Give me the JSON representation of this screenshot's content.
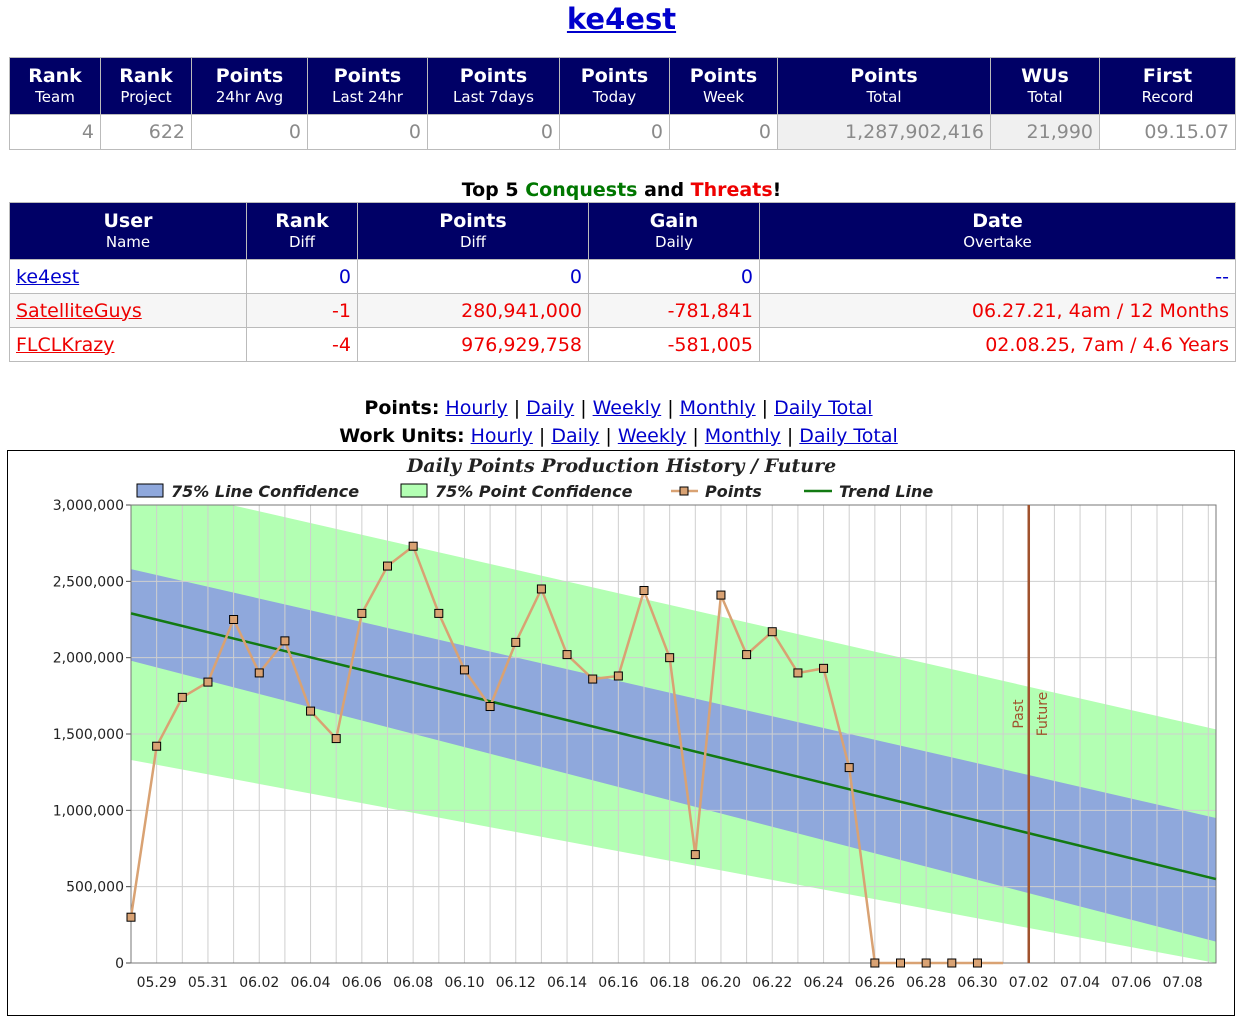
{
  "title": "ke4est",
  "stats": {
    "headers": [
      {
        "top": "Rank",
        "sub": "Team"
      },
      {
        "top": "Rank",
        "sub": "Project"
      },
      {
        "top": "Points",
        "sub": "24hr Avg"
      },
      {
        "top": "Points",
        "sub": "Last 24hr"
      },
      {
        "top": "Points",
        "sub": "Last 7days"
      },
      {
        "top": "Points",
        "sub": "Today"
      },
      {
        "top": "Points",
        "sub": "Week"
      },
      {
        "top": "Points",
        "sub": "Total"
      },
      {
        "top": "WUs",
        "sub": "Total"
      },
      {
        "top": "First",
        "sub": "Record"
      }
    ],
    "values": [
      "4",
      "622",
      "0",
      "0",
      "0",
      "0",
      "0",
      "1,287,902,416",
      "21,990",
      "09.15.07"
    ]
  },
  "top5": {
    "heading_pre": "Top 5 ",
    "heading_conquests": "Conquests",
    "heading_mid": " and ",
    "heading_threats": "Threats",
    "heading_post": "!",
    "headers": [
      {
        "top": "User",
        "sub": "Name"
      },
      {
        "top": "Rank",
        "sub": "Diff"
      },
      {
        "top": "Points",
        "sub": "Diff"
      },
      {
        "top": "Gain",
        "sub": "Daily"
      },
      {
        "top": "Date",
        "sub": "Overtake"
      }
    ],
    "rows": [
      {
        "user": "ke4est",
        "rank_diff": "0",
        "points_diff": "0",
        "gain": "0",
        "date": "--"
      },
      {
        "user": "SatelliteGuys",
        "rank_diff": "-1",
        "points_diff": "280,941,000",
        "gain": "-781,841",
        "date": "06.27.21, 4am / 12 Months"
      },
      {
        "user": "FLCLKrazy",
        "rank_diff": "-4",
        "points_diff": "976,929,758",
        "gain": "-581,005",
        "date": "02.08.25, 7am / 4.6 Years"
      }
    ]
  },
  "nav": {
    "points_label": "Points:",
    "wu_label": "Work Units:",
    "links": [
      "Hourly",
      "Daily",
      "Weekly",
      "Monthly",
      "Daily Total"
    ],
    "separator": "|"
  },
  "chart_data": {
    "type": "line",
    "title": "Daily Points Production History / Future",
    "legend": [
      "75% Line Confidence",
      "75% Point Confidence",
      "Points",
      "Trend Line"
    ],
    "legend_position": "top",
    "grid": true,
    "ylim": [
      0,
      3000000
    ],
    "y_ticks": [
      "0",
      "500,000",
      "1,000,000",
      "1,500,000",
      "2,000,000",
      "2,500,000",
      "3,000,000"
    ],
    "x_ticks": [
      "05.29",
      "05.31",
      "06.02",
      "06.04",
      "06.06",
      "06.08",
      "06.10",
      "06.12",
      "06.14",
      "06.16",
      "06.18",
      "06.20",
      "06.22",
      "06.24",
      "06.26",
      "06.28",
      "06.30",
      "07.02",
      "07.04",
      "07.06",
      "07.08"
    ],
    "x_dates": [
      "05.28",
      "05.29",
      "05.30",
      "05.31",
      "06.01",
      "06.02",
      "06.03",
      "06.04",
      "06.05",
      "06.06",
      "06.07",
      "06.08",
      "06.09",
      "06.10",
      "06.11",
      "06.12",
      "06.13",
      "06.14",
      "06.15",
      "06.16",
      "06.17",
      "06.18",
      "06.19",
      "06.20",
      "06.21",
      "06.22",
      "06.23",
      "06.24",
      "06.25",
      "06.26",
      "06.27",
      "06.28",
      "06.29",
      "06.30",
      "07.01",
      "07.02",
      "07.03",
      "07.04",
      "07.05",
      "07.06",
      "07.07",
      "07.08",
      "07.09"
    ],
    "points": [
      300000,
      1420000,
      1740000,
      1840000,
      2250000,
      1900000,
      2110000,
      1650000,
      1470000,
      2290000,
      2600000,
      2730000,
      2290000,
      1920000,
      1680000,
      2100000,
      2450000,
      2020000,
      1860000,
      1880000,
      2440000,
      2000000,
      710000,
      2410000,
      2020000,
      2170000,
      1900000,
      1930000,
      1280000,
      0,
      0,
      0,
      0,
      0,
      0
    ],
    "trend": {
      "start": 2290000,
      "end": 550000
    },
    "line_confidence": {
      "upper_start": 2580000,
      "lower_start": 1980000,
      "upper_end": 950000,
      "lower_end": 140000
    },
    "point_confidence": {
      "upper_start": 3150000,
      "lower_start": 1330000,
      "upper_end": 1530000,
      "lower_end": 0
    },
    "divider": {
      "date": "07.02",
      "left_label": "Past",
      "right_label": "Future"
    },
    "colors": {
      "line_conf": "#8fa8dc",
      "point_conf": "#b3ffb3",
      "points": "#d9a273",
      "trend": "#127a12",
      "divider": "#a0522d"
    }
  }
}
